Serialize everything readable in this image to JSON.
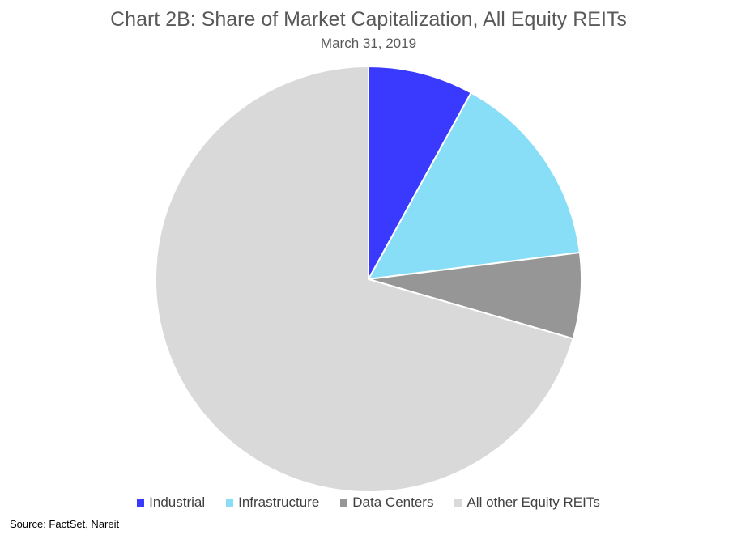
{
  "chart_data": {
    "type": "pie",
    "title": "Chart 2B: Share of Market Capitalization,  All Equity REITs",
    "subtitle": "March 31, 2019",
    "slices": [
      {
        "label": "Industrial",
        "value": 8.0,
        "color": "#3a3aff"
      },
      {
        "label": "Infrastructure",
        "value": 15.0,
        "color": "#87def6"
      },
      {
        "label": "Data Centers",
        "value": 6.5,
        "color": "#969696"
      },
      {
        "label": "All other Equity REITs",
        "value": 70.5,
        "color": "#d9d9d9"
      }
    ],
    "start_angle": "12 o'clock",
    "direction": "clockwise",
    "legend_position": "bottom",
    "source": "Source: FactSet, Nareit"
  }
}
